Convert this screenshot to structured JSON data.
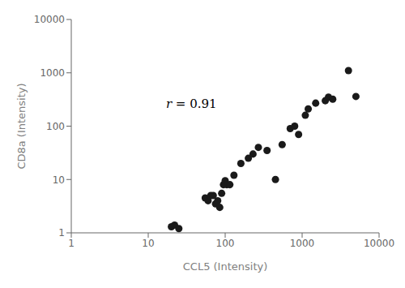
{
  "chart_data": {
    "type": "scatter",
    "x": [
      20,
      22,
      25,
      55,
      60,
      65,
      70,
      75,
      80,
      85,
      90,
      95,
      100,
      105,
      115,
      130,
      160,
      200,
      230,
      270,
      350,
      450,
      550,
      700,
      800,
      900,
      1100,
      1200,
      1500,
      2000,
      2200,
      2500,
      4000,
      5000
    ],
    "values": [
      1.3,
      1.4,
      1.2,
      4.5,
      4.0,
      5.0,
      5.0,
      3.5,
      4.0,
      3.0,
      5.5,
      8.0,
      9.5,
      8.0,
      8.0,
      12.0,
      20.0,
      25.0,
      30.0,
      40.0,
      35.0,
      10.0,
      45.0,
      90.0,
      100.0,
      70.0,
      160.0,
      210.0,
      270.0,
      300.0,
      350.0,
      320.0,
      1100.0,
      360.0
    ],
    "color": "#1a1a1a",
    "xlabel": "CCL5 (Intensity)",
    "ylabel": "CD8a (Intensity)",
    "xlim": [
      1,
      10000
    ],
    "ylim": [
      1,
      10000
    ],
    "xticks": [
      1,
      10,
      100,
      1000,
      10000
    ],
    "yticks": [
      1,
      10,
      100,
      1000,
      10000
    ],
    "log": true,
    "grid": false,
    "annotations": [
      {
        "text": "r = 0.91",
        "x": 17,
        "y": 220
      }
    ]
  }
}
